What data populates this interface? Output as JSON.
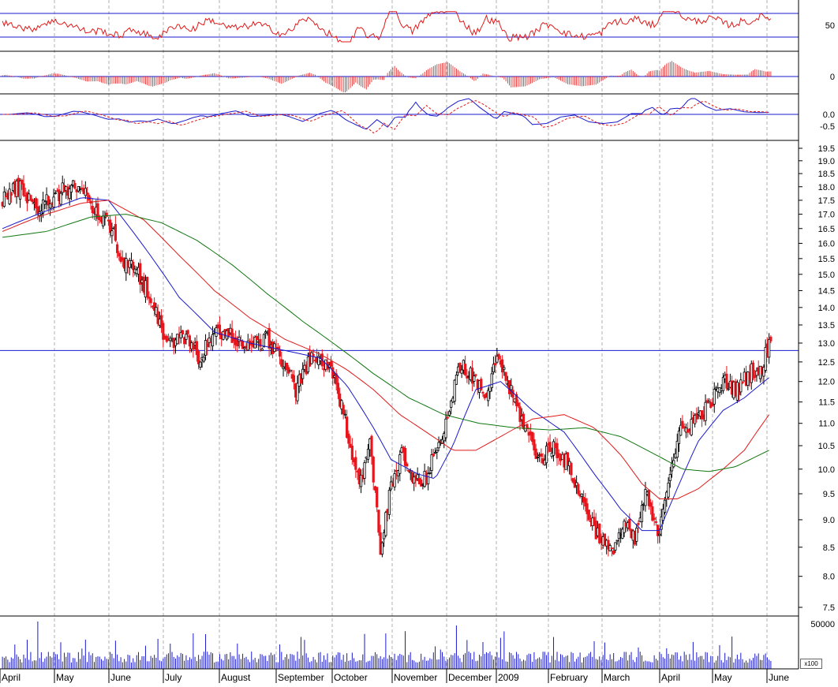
{
  "chart_data": {
    "type": "candlestick",
    "colors": {
      "up_candle": "#000000",
      "down_candle": "#e8141c",
      "ma_blue": "#1a1acc",
      "ma_red": "#e01a1a",
      "ma_green": "#117711",
      "reference_line": "#1a1acc",
      "grid": "#b0b0b0"
    },
    "x_axis": {
      "labels": [
        "April",
        "May",
        "June",
        "July",
        "August",
        "September",
        "October",
        "November",
        "December",
        "2009",
        "February",
        "March",
        "April",
        "May",
        "June"
      ]
    },
    "volume_unit_label": "x100",
    "price": {
      "ylim": [
        7.3,
        19.9
      ],
      "scale": "log",
      "ticks": [
        "19.5",
        "19.0",
        "18.5",
        "18.0",
        "17.5",
        "17.0",
        "16.5",
        "16.0",
        "15.5",
        "15.0",
        "14.5",
        "14.0",
        "13.5",
        "13.0",
        "12.5",
        "12.0",
        "11.5",
        "11.0",
        "10.5",
        "10.0",
        "9.5",
        "9.0",
        "8.5",
        "8.0",
        "7.5"
      ],
      "reference_level": 12.8,
      "anchors": [
        {
          "d": 0,
          "v": 17.6
        },
        {
          "d": 10,
          "v": 18.0
        },
        {
          "d": 20,
          "v": 17.2
        },
        {
          "d": 30,
          "v": 17.7
        },
        {
          "d": 40,
          "v": 18.1
        },
        {
          "d": 48,
          "v": 17.6
        },
        {
          "d": 55,
          "v": 16.9
        },
        {
          "d": 62,
          "v": 16.6
        },
        {
          "d": 68,
          "v": 15.3
        },
        {
          "d": 75,
          "v": 15.2
        },
        {
          "d": 85,
          "v": 14.2
        },
        {
          "d": 93,
          "v": 13.0
        },
        {
          "d": 103,
          "v": 13.2
        },
        {
          "d": 112,
          "v": 12.6
        },
        {
          "d": 120,
          "v": 13.3
        },
        {
          "d": 130,
          "v": 13.2
        },
        {
          "d": 138,
          "v": 12.9
        },
        {
          "d": 150,
          "v": 13.1
        },
        {
          "d": 158,
          "v": 12.6
        },
        {
          "d": 166,
          "v": 11.8
        },
        {
          "d": 175,
          "v": 12.6
        },
        {
          "d": 185,
          "v": 12.4
        },
        {
          "d": 193,
          "v": 11.2
        },
        {
          "d": 202,
          "v": 9.7
        },
        {
          "d": 208,
          "v": 10.5
        },
        {
          "d": 214,
          "v": 8.5
        },
        {
          "d": 220,
          "v": 9.6
        },
        {
          "d": 226,
          "v": 10.3
        },
        {
          "d": 232,
          "v": 9.8
        },
        {
          "d": 238,
          "v": 9.7
        },
        {
          "d": 246,
          "v": 10.4
        },
        {
          "d": 254,
          "v": 11.5
        },
        {
          "d": 260,
          "v": 12.5
        },
        {
          "d": 267,
          "v": 12.0
        },
        {
          "d": 275,
          "v": 11.6
        },
        {
          "d": 280,
          "v": 12.7
        },
        {
          "d": 288,
          "v": 11.7
        },
        {
          "d": 296,
          "v": 10.9
        },
        {
          "d": 304,
          "v": 10.2
        },
        {
          "d": 312,
          "v": 10.5
        },
        {
          "d": 320,
          "v": 10.1
        },
        {
          "d": 328,
          "v": 9.4
        },
        {
          "d": 336,
          "v": 8.8
        },
        {
          "d": 344,
          "v": 8.4
        },
        {
          "d": 352,
          "v": 8.9
        },
        {
          "d": 358,
          "v": 8.6
        },
        {
          "d": 364,
          "v": 9.5
        },
        {
          "d": 371,
          "v": 8.7
        },
        {
          "d": 378,
          "v": 10.0
        },
        {
          "d": 384,
          "v": 10.8
        },
        {
          "d": 392,
          "v": 11.1
        },
        {
          "d": 400,
          "v": 11.4
        },
        {
          "d": 408,
          "v": 12.0
        },
        {
          "d": 416,
          "v": 11.8
        },
        {
          "d": 424,
          "v": 12.3
        },
        {
          "d": 430,
          "v": 12.2
        },
        {
          "d": 434,
          "v": 13.2
        }
      ]
    },
    "moving_averages": [
      {
        "color": "ma_blue",
        "points": [
          [
            0,
            16.5
          ],
          [
            20,
            17.0
          ],
          [
            45,
            17.6
          ],
          [
            60,
            17.5
          ],
          [
            80,
            15.9
          ],
          [
            100,
            14.3
          ],
          [
            120,
            13.3
          ],
          [
            140,
            13.0
          ],
          [
            160,
            12.8
          ],
          [
            180,
            12.6
          ],
          [
            195,
            11.9
          ],
          [
            210,
            10.9
          ],
          [
            220,
            10.2
          ],
          [
            235,
            9.9
          ],
          [
            245,
            9.8
          ],
          [
            255,
            10.5
          ],
          [
            268,
            11.8
          ],
          [
            282,
            12.0
          ],
          [
            300,
            11.3
          ],
          [
            318,
            10.8
          ],
          [
            335,
            9.9
          ],
          [
            350,
            9.2
          ],
          [
            362,
            8.8
          ],
          [
            372,
            8.8
          ],
          [
            382,
            9.6
          ],
          [
            394,
            10.6
          ],
          [
            408,
            11.3
          ],
          [
            420,
            11.6
          ],
          [
            434,
            12.1
          ]
        ]
      },
      {
        "color": "ma_red",
        "points": [
          [
            0,
            16.4
          ],
          [
            20,
            16.9
          ],
          [
            45,
            17.4
          ],
          [
            60,
            17.5
          ],
          [
            80,
            16.8
          ],
          [
            100,
            15.6
          ],
          [
            120,
            14.5
          ],
          [
            140,
            13.7
          ],
          [
            160,
            13.1
          ],
          [
            180,
            12.7
          ],
          [
            195,
            12.3
          ],
          [
            210,
            11.8
          ],
          [
            225,
            11.2
          ],
          [
            240,
            10.8
          ],
          [
            255,
            10.4
          ],
          [
            268,
            10.4
          ],
          [
            282,
            10.7
          ],
          [
            300,
            11.1
          ],
          [
            318,
            11.2
          ],
          [
            335,
            10.9
          ],
          [
            350,
            10.3
          ],
          [
            362,
            9.7
          ],
          [
            372,
            9.4
          ],
          [
            382,
            9.4
          ],
          [
            394,
            9.6
          ],
          [
            408,
            10.0
          ],
          [
            420,
            10.4
          ],
          [
            434,
            11.2
          ]
        ]
      },
      {
        "color": "ma_green",
        "points": [
          [
            0,
            16.2
          ],
          [
            25,
            16.4
          ],
          [
            50,
            16.9
          ],
          [
            70,
            17.0
          ],
          [
            90,
            16.7
          ],
          [
            110,
            16.1
          ],
          [
            130,
            15.3
          ],
          [
            150,
            14.4
          ],
          [
            170,
            13.6
          ],
          [
            190,
            12.9
          ],
          [
            210,
            12.2
          ],
          [
            230,
            11.6
          ],
          [
            250,
            11.2
          ],
          [
            270,
            11.0
          ],
          [
            290,
            10.9
          ],
          [
            310,
            10.85
          ],
          [
            330,
            10.9
          ],
          [
            350,
            10.7
          ],
          [
            370,
            10.3
          ],
          [
            385,
            10.0
          ],
          [
            400,
            9.95
          ],
          [
            415,
            10.05
          ],
          [
            434,
            10.4
          ]
        ]
      }
    ],
    "rsi_panel": {
      "ticks": [
        "50"
      ],
      "upper_level": 70,
      "lower_level": 30
    },
    "histogram_panel": {
      "ticks": [
        "0"
      ]
    },
    "macd_panel": {
      "ticks": [
        "0.0",
        "-0.5"
      ]
    },
    "volume_panel": {
      "ticks": [
        "50000"
      ]
    }
  }
}
